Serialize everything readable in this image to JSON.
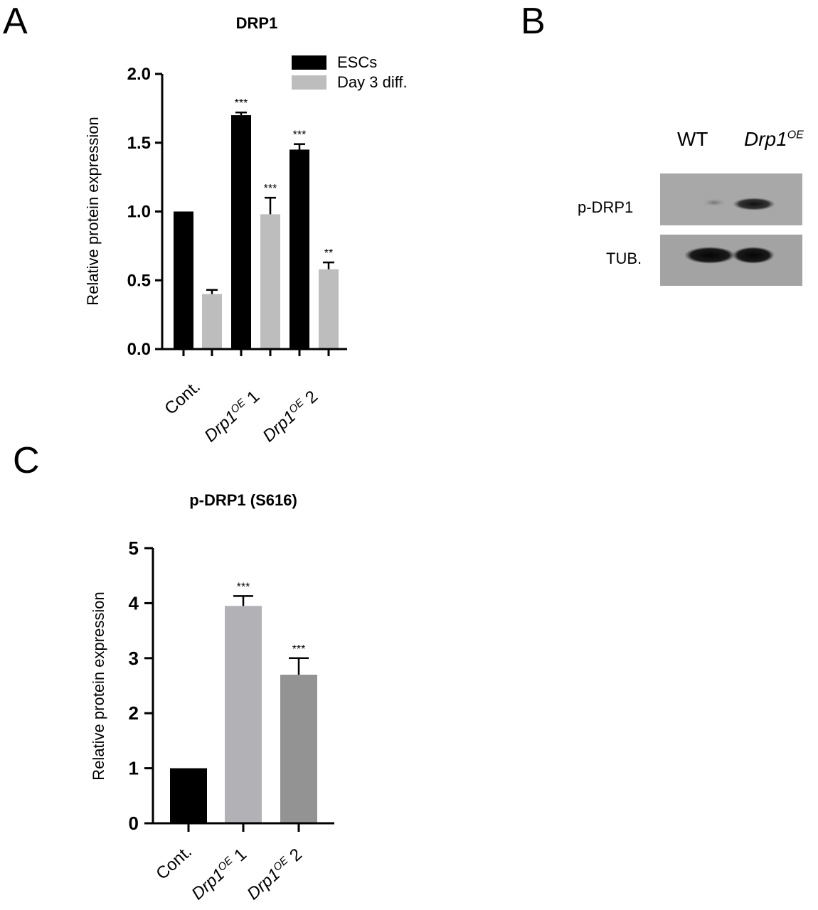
{
  "panels": {
    "a": "A",
    "b": "B",
    "c": "C"
  },
  "chart_data": [
    {
      "id": "A",
      "type": "bar",
      "title": "DRP1",
      "ylabel": "Relative protein expression",
      "xlabel": "",
      "ylim": [
        0,
        2.0
      ],
      "yticks": [
        "0.0",
        "0.5",
        "1.0",
        "1.5",
        "2.0"
      ],
      "categories": [
        {
          "base": "Cont.",
          "sup": "",
          "suffix": ""
        },
        {
          "base": "Drp1",
          "sup": "OE",
          "suffix": " 1"
        },
        {
          "base": "Drp1",
          "sup": "OE",
          "suffix": " 2"
        }
      ],
      "legend_position": "top-right",
      "series": [
        {
          "name": "ESCs",
          "color": "#000000",
          "values": [
            1.0,
            1.7,
            1.45
          ],
          "errors": [
            0,
            0.02,
            0.04
          ],
          "sig": [
            "",
            "***",
            "***"
          ]
        },
        {
          "name": "Day 3 diff.",
          "color": "#bdbdbd",
          "values": [
            0.4,
            0.98,
            0.58
          ],
          "errors": [
            0.03,
            0.12,
            0.05
          ],
          "sig": [
            "",
            "***",
            "**"
          ]
        }
      ]
    },
    {
      "id": "C",
      "type": "bar",
      "title": "p-DRP1 (S616)",
      "ylabel": "Relative protein expression",
      "xlabel": "",
      "ylim": [
        0,
        5
      ],
      "yticks": [
        "0",
        "1",
        "2",
        "3",
        "4",
        "5"
      ],
      "categories": [
        {
          "base": "Cont.",
          "sup": "",
          "suffix": ""
        },
        {
          "base": "Drp1",
          "sup": "OE",
          "suffix": " 1"
        },
        {
          "base": "Drp1",
          "sup": "OE",
          "suffix": " 2"
        }
      ],
      "bar_colors": [
        "#000000",
        "#b2b2b6",
        "#939393"
      ],
      "values": [
        1.0,
        3.95,
        2.7
      ],
      "errors": [
        0,
        0.18,
        0.3
      ],
      "sig": [
        "",
        "***",
        "***"
      ]
    }
  ],
  "blot": {
    "lanes": [
      {
        "base": "WT",
        "sup": ""
      },
      {
        "base": "Drp1",
        "sup": "OE"
      }
    ],
    "rows": [
      {
        "label": "p-DRP1"
      },
      {
        "label": "TUB."
      }
    ]
  }
}
